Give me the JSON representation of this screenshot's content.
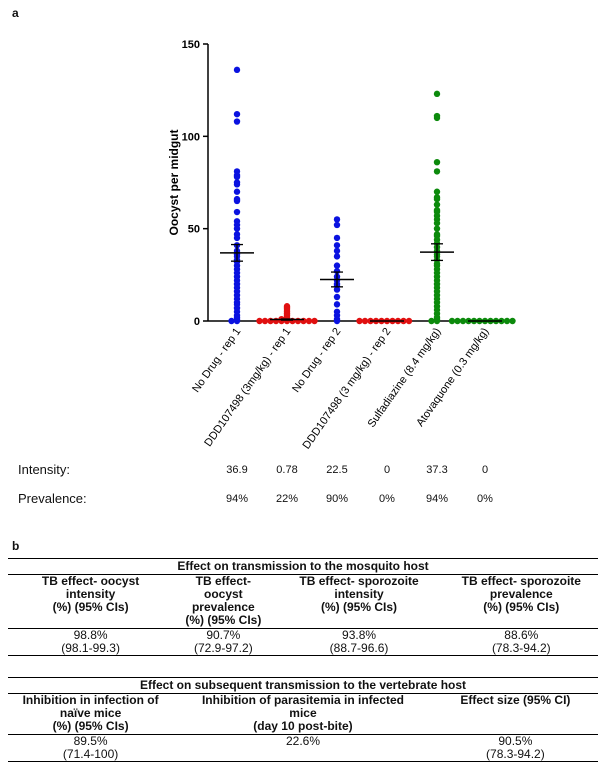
{
  "panel_a_label": "a",
  "panel_b_label": "b",
  "chart_data": {
    "type": "scatter",
    "ylabel": "Oocyst per midgut",
    "ylim": [
      0,
      150
    ],
    "yticks": [
      0,
      50,
      100,
      150
    ],
    "categories": [
      "No Drug - rep 1",
      "DDD107498 (3mg/kg) - rep 1",
      "No Drug - rep 2",
      "DDD107498 (3 mg/kg) - rep 2",
      "Sulfadiazine (8.4 mg/kg)",
      "Atovaquone (0.3 mg/kg)"
    ],
    "colors": [
      "#0a12e0",
      "#e01010",
      "#0a12e0",
      "#e01010",
      "#0c8a0c",
      "#0c8a0c"
    ],
    "means": [
      36.9,
      0.78,
      22.5,
      0,
      37.3,
      0
    ],
    "sem": [
      4.5,
      0.3,
      4.0,
      0,
      4.5,
      0
    ],
    "points": [
      [
        136,
        112,
        108,
        81,
        79,
        78,
        75,
        74,
        70,
        66,
        65,
        59,
        54,
        52,
        50,
        47,
        45,
        41,
        38,
        36,
        35,
        33,
        32,
        30,
        28,
        26,
        24,
        22,
        20,
        18,
        16,
        14,
        12,
        10,
        9,
        7,
        5,
        3,
        2,
        1,
        0,
        0
      ],
      [
        8,
        7,
        6,
        5,
        4,
        3,
        2,
        1,
        1,
        0,
        0,
        0,
        0,
        0,
        0,
        0,
        0,
        0,
        0,
        0
      ],
      [
        55,
        52,
        45,
        41,
        38,
        35,
        30,
        27,
        24,
        22,
        20,
        19,
        17,
        13,
        9,
        5,
        3,
        1,
        0
      ],
      [
        0,
        0,
        0,
        0,
        0,
        0,
        0,
        0,
        0,
        0
      ],
      [
        123,
        111,
        110,
        86,
        81,
        70,
        67,
        66,
        63,
        60,
        59,
        57,
        55,
        53,
        50,
        47,
        46,
        44,
        42,
        40,
        38,
        36,
        35,
        33,
        31,
        30,
        28,
        26,
        24,
        22,
        20,
        18,
        16,
        14,
        12,
        10,
        8,
        6,
        4,
        2,
        1,
        0,
        0
      ],
      [
        0,
        0,
        0,
        0,
        0,
        0,
        0,
        0,
        0,
        0,
        0,
        0
      ]
    ]
  },
  "summary": {
    "intensity_label": "Intensity:",
    "prevalence_label": "Prevalence:",
    "intensity": [
      "36.9",
      "0.78",
      "22.5",
      "0",
      "37.3",
      "0"
    ],
    "prevalence": [
      "94%",
      "22%",
      "90%",
      "0%",
      "94%",
      "0%"
    ]
  },
  "table1": {
    "title": "Effect on transmission to the mosquito host",
    "headers": [
      [
        "TB effect- oocyst",
        "intensity",
        "(%) (95% CIs)"
      ],
      [
        "TB effect-",
        "oocyst",
        "prevalence",
        "(%) (95% CIs)"
      ],
      [
        "TB effect- sporozoite",
        "intensity",
        "(%) (95% CIs)"
      ],
      [
        "TB effect- sporozoite",
        "prevalence",
        "(%) (95% CIs)"
      ]
    ],
    "values": [
      [
        "98.8%",
        "(98.1-99.3)"
      ],
      [
        "90.7%",
        "(72.9-97.2)"
      ],
      [
        "93.8%",
        "(88.7-96.6)"
      ],
      [
        "88.6%",
        "(78.3-94.2)"
      ]
    ]
  },
  "table2": {
    "title": "Effect on subsequent transmission to the vertebrate host",
    "headers": [
      [
        "Inhibition in infection of",
        "naïve mice",
        "(%) (95% CIs)"
      ],
      [
        "Inhibition of parasitemia in infected",
        "mice",
        "(day 10 post-bite)"
      ],
      [
        "Effect size (95% CI)"
      ]
    ],
    "values": [
      [
        "89.5%",
        "(71.4-100)"
      ],
      [
        "22.6%"
      ],
      [
        "90.5%",
        "(78.3-94.2)"
      ]
    ]
  }
}
